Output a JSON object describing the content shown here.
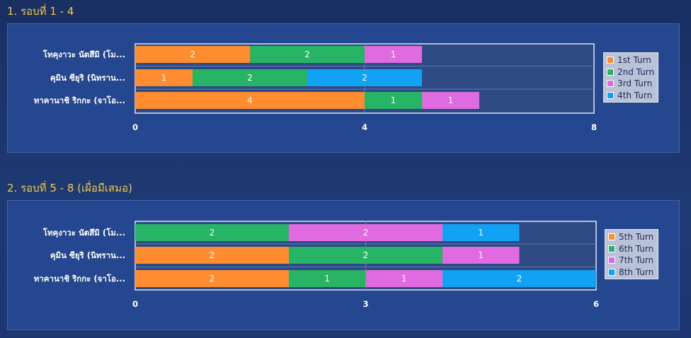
{
  "sections": [
    {
      "title": "1. รอบที่ 1 - 4"
    },
    {
      "title": "2. รอบที่ 5 - 8 (เผื่อมีเสมอ)"
    }
  ],
  "chart_data": [
    {
      "type": "bar",
      "orientation": "horizontal",
      "stacked": true,
      "categories": [
        "โทคุงาวะ นัตสึมิ (โม...",
        "คุมิน ซียุริ (นิทราน...",
        "ทาคานาชิ ริกกะ (จาโอ..."
      ],
      "series": [
        {
          "name": "1st Turn",
          "values": [
            2,
            1,
            4
          ],
          "color": "#ff8c2e"
        },
        {
          "name": "2nd Turn",
          "values": [
            2,
            2,
            1
          ],
          "color": "#27b565"
        },
        {
          "name": "3rd Turn",
          "values": [
            1,
            0,
            1
          ],
          "color": "#e06be0"
        },
        {
          "name": "4th Turn",
          "values": [
            0,
            2,
            0
          ],
          "color": "#12a2f4"
        }
      ],
      "xlim": [
        0,
        8
      ],
      "xticks": [
        "0",
        "4",
        "8"
      ],
      "legend_position": "right"
    },
    {
      "type": "bar",
      "orientation": "horizontal",
      "stacked": true,
      "categories": [
        "โทคุงาวะ นัตสึมิ (โม...",
        "คุมิน ซียุริ (นิทราน...",
        "ทาคานาชิ ริกกะ (จาโอ..."
      ],
      "series": [
        {
          "name": "5th Turn",
          "values": [
            0,
            2,
            2
          ],
          "color": "#ff8c2e"
        },
        {
          "name": "6th Turn",
          "values": [
            2,
            2,
            1
          ],
          "color": "#27b565"
        },
        {
          "name": "7th Turn",
          "values": [
            2,
            1,
            1
          ],
          "color": "#e06be0"
        },
        {
          "name": "8th Turn",
          "values": [
            1,
            0,
            2
          ],
          "color": "#12a2f4"
        }
      ],
      "xlim": [
        0,
        6
      ],
      "xticks": [
        "0",
        "3",
        "6"
      ],
      "legend_position": "right"
    }
  ]
}
